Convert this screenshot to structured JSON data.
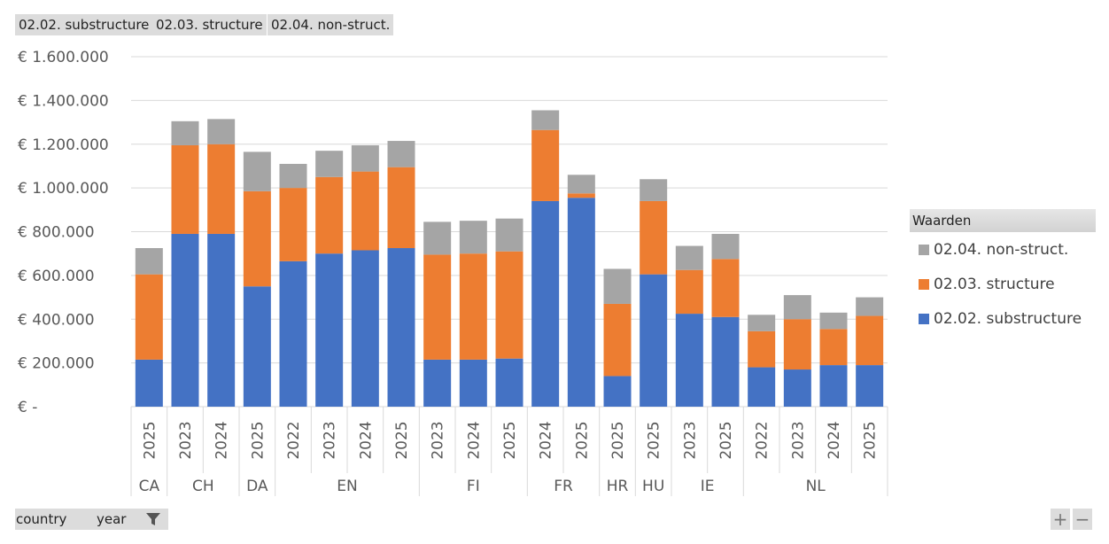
{
  "filter_pills": [
    {
      "label": "02.02. substructure"
    },
    {
      "label": "02.03. structure"
    },
    {
      "label": "02.04. non-struct."
    }
  ],
  "axis_buttons": {
    "country_label": "country",
    "year_label": "year"
  },
  "corner_buttons": {
    "expand": "+",
    "collapse": "−"
  },
  "legend": {
    "title": "Waarden",
    "items": [
      {
        "label": "02.04. non-struct.",
        "color": "#a5a5a5"
      },
      {
        "label": "02.03. structure",
        "color": "#ed7d31"
      },
      {
        "label": "02.02. substructure",
        "color": "#4472c4"
      }
    ]
  },
  "chart_data": {
    "type": "bar",
    "stacked": true,
    "ylim": [
      0,
      1600000
    ],
    "yticks": [
      0,
      200000,
      400000,
      600000,
      800000,
      1000000,
      1200000,
      1400000,
      1600000
    ],
    "ytick_labels": [
      "€ -",
      "€ 200.000",
      "€ 400.000",
      "€ 600.000",
      "€ 800.000",
      "€ 1.000.000",
      "€ 1.200.000",
      "€ 1.400.000",
      "€ 1.600.000"
    ],
    "grid": true,
    "legend_position": "right",
    "categories": [
      {
        "country": "CA",
        "year": "2025"
      },
      {
        "country": "CH",
        "year": "2023"
      },
      {
        "country": "CH",
        "year": "2024"
      },
      {
        "country": "DA",
        "year": "2025"
      },
      {
        "country": "EN",
        "year": "2022"
      },
      {
        "country": "EN",
        "year": "2023"
      },
      {
        "country": "EN",
        "year": "2024"
      },
      {
        "country": "EN",
        "year": "2025"
      },
      {
        "country": "FI",
        "year": "2023"
      },
      {
        "country": "FI",
        "year": "2024"
      },
      {
        "country": "FI",
        "year": "2025"
      },
      {
        "country": "FR",
        "year": "2024"
      },
      {
        "country": "FR",
        "year": "2025"
      },
      {
        "country": "HR",
        "year": "2025"
      },
      {
        "country": "HU",
        "year": "2025"
      },
      {
        "country": "IE",
        "year": "2023"
      },
      {
        "country": "IE",
        "year": "2025"
      },
      {
        "country": "NL",
        "year": "2022"
      },
      {
        "country": "NL",
        "year": "2023"
      },
      {
        "country": "NL",
        "year": "2024"
      },
      {
        "country": "NL",
        "year": "2025"
      }
    ],
    "series": [
      {
        "name": "02.02. substructure",
        "color": "#4472c4",
        "values": [
          215000,
          790000,
          790000,
          550000,
          665000,
          700000,
          715000,
          725000,
          215000,
          215000,
          220000,
          940000,
          955000,
          140000,
          605000,
          425000,
          410000,
          180000,
          170000,
          190000,
          190000
        ]
      },
      {
        "name": "02.03. structure",
        "color": "#ed7d31",
        "values": [
          390000,
          405000,
          410000,
          435000,
          335000,
          350000,
          360000,
          370000,
          480000,
          485000,
          490000,
          325000,
          20000,
          330000,
          335000,
          200000,
          265000,
          165000,
          230000,
          165000,
          225000
        ]
      },
      {
        "name": "02.04. non-struct.",
        "color": "#a5a5a5",
        "values": [
          120000,
          110000,
          115000,
          180000,
          110000,
          120000,
          120000,
          120000,
          150000,
          150000,
          150000,
          90000,
          85000,
          160000,
          100000,
          110000,
          115000,
          75000,
          110000,
          75000,
          85000
        ]
      }
    ]
  }
}
